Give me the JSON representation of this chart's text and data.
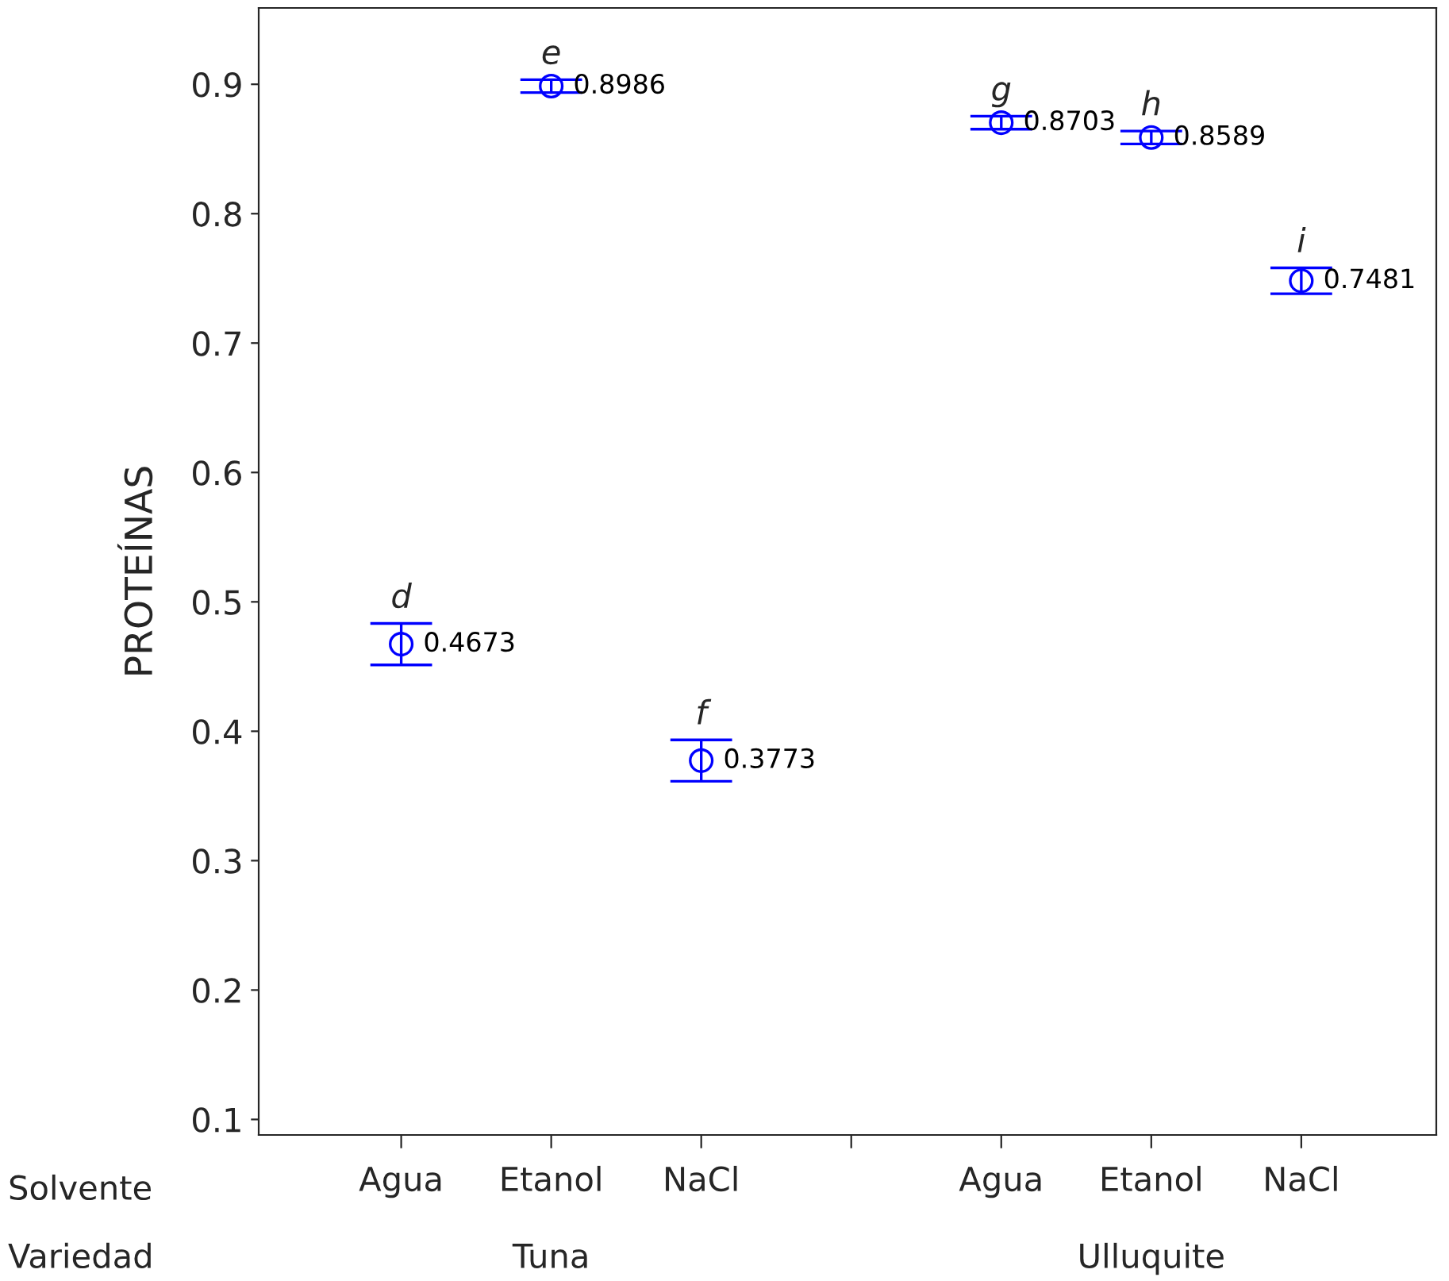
{
  "chart_data": {
    "type": "scatter",
    "ylabel": "PROTEÍNAS",
    "categories": [
      "Agua",
      "Etanol",
      "NaCl",
      null,
      "Agua",
      "Etanol",
      "NaCl"
    ],
    "series": [
      {
        "color": "#0000ff",
        "values": [
          0.4673,
          0.8986,
          0.3773,
          null,
          0.8703,
          0.8589,
          0.7481
        ],
        "errors": [
          0.016,
          0.005,
          0.016,
          null,
          0.005,
          0.005,
          0.01
        ]
      }
    ],
    "data_labels": true,
    "marker": "circle",
    "grid": false,
    "legend": false,
    "ylim": [
      0.088,
      0.959
    ],
    "yticks": [
      0.1,
      0.2,
      0.3,
      0.4,
      0.5,
      0.6,
      0.7,
      0.8,
      0.9
    ],
    "annotations": [
      "Solvente",
      "Variedad",
      "Tuna",
      "Ulluquite",
      "d",
      "e",
      "f",
      "g",
      "h",
      "i"
    ]
  }
}
